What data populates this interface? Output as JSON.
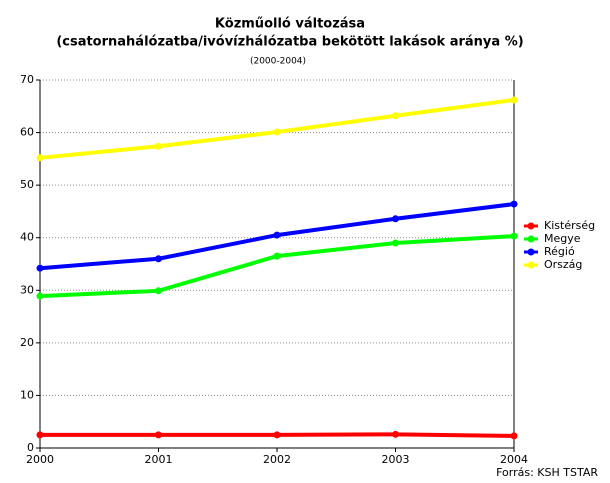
{
  "chart_data": {
    "type": "line",
    "title": "Közműolló változása",
    "subtitle": "(csatornahálózatba/ivóvízhálózatba bekötött lakások aránya %)",
    "period": "(2000-2004)",
    "source": "Forrás: KSH TSTAR",
    "categories": [
      "2000",
      "2001",
      "2002",
      "2003",
      "2004"
    ],
    "series": [
      {
        "name": "Kistérség",
        "color": "#ff0000",
        "values": [
          2.5,
          2.5,
          2.5,
          2.6,
          2.3
        ]
      },
      {
        "name": "Megye",
        "color": "#00ff00",
        "values": [
          28.9,
          29.9,
          36.5,
          39.0,
          40.3
        ]
      },
      {
        "name": "Régió",
        "color": "#0000ff",
        "values": [
          34.2,
          36.0,
          40.5,
          43.6,
          46.4
        ]
      },
      {
        "name": "Ország",
        "color": "#ffff00",
        "values": [
          55.2,
          57.4,
          60.1,
          63.2,
          66.2
        ]
      }
    ],
    "ylim": [
      0,
      70
    ],
    "yticks": [
      0,
      10,
      20,
      30,
      40,
      50,
      60,
      70
    ],
    "grid": true
  }
}
